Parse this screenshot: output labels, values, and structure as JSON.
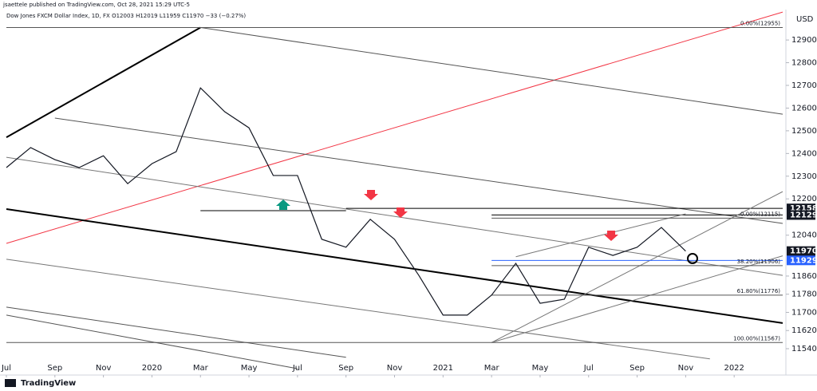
{
  "chart_data": {
    "type": "line",
    "publisher": "jsaettele published on TradingView.com, Oct 28, 2021 15:29 UTC-5",
    "title": "Dow Jones FXCM Dollar Index, 1D, FX  O12003  H12019  L11959  C11970  −33 (−0.27%)",
    "currency": "USD",
    "footer": "TradingView",
    "xlim": [
      "2019-07",
      "2022-03"
    ],
    "xticks": [
      {
        "value": "2019-07",
        "label": "Jul"
      },
      {
        "value": "2019-09",
        "label": "Sep"
      },
      {
        "value": "2019-11",
        "label": "Nov"
      },
      {
        "value": "2020-01",
        "label": "2020"
      },
      {
        "value": "2020-03",
        "label": "Mar"
      },
      {
        "value": "2020-05",
        "label": "May"
      },
      {
        "value": "2020-07",
        "label": "Jul"
      },
      {
        "value": "2020-09",
        "label": "Sep"
      },
      {
        "value": "2020-11",
        "label": "Nov"
      },
      {
        "value": "2021-01",
        "label": "2021"
      },
      {
        "value": "2021-03",
        "label": "Mar"
      },
      {
        "value": "2021-05",
        "label": "May"
      },
      {
        "value": "2021-07",
        "label": "Jul"
      },
      {
        "value": "2021-09",
        "label": "Sep"
      },
      {
        "value": "2021-11",
        "label": "Nov"
      },
      {
        "value": "2022-01",
        "label": "2022"
      }
    ],
    "ylim": [
      11452,
      13034
    ],
    "yticks": [
      12900,
      12800,
      12700,
      12600,
      12500,
      12400,
      12300,
      12200,
      12040,
      11860,
      11780,
      11700,
      11620,
      11540
    ],
    "x": [
      "2019-07",
      "2019-08",
      "2019-09",
      "2019-10",
      "2019-11",
      "2019-12",
      "2020-01",
      "2020-02",
      "2020-03",
      "2020-04",
      "2020-05",
      "2020-06",
      "2020-07",
      "2020-08",
      "2020-09",
      "2020-10",
      "2020-11",
      "2020-12",
      "2021-01",
      "2021-02",
      "2021-03",
      "2021-04",
      "2021-05",
      "2021-06",
      "2021-07",
      "2021-08",
      "2021-09",
      "2021-10",
      "2021-11"
    ],
    "series": [
      {
        "name": "Dow Jones FXCM Dollar Index",
        "color": "#131722",
        "values": [
          12338,
          12426,
          12373,
          12338,
          12390,
          12267,
          12355,
          12408,
          12689,
          12584,
          12513,
          12303,
          12303,
          12022,
          11987,
          12110,
          12022,
          11863,
          11688,
          11688,
          11776,
          11916,
          11740,
          11758,
          11987,
          11951,
          11987,
          12074,
          11970
        ]
      }
    ],
    "lines": [
      {
        "x": [
          "2019-07",
          "2020-03"
        ],
        "y": [
          12471,
          12955
        ],
        "color": "#000000",
        "style": "thick"
      },
      {
        "x": [
          "2019-07",
          "2022-03"
        ],
        "y": [
          12004,
          13023
        ],
        "color": "#f23645",
        "style": "thin"
      },
      {
        "x": [
          "2020-03",
          "2022-03"
        ],
        "y": [
          12955,
          12573
        ],
        "color": "#555555",
        "style": "thin"
      },
      {
        "x": [
          "2019-09",
          "2022-03"
        ],
        "y": [
          12556,
          12092
        ],
        "color": "#555555",
        "style": "thin"
      },
      {
        "x": [
          "2019-07",
          "2022-03"
        ],
        "y": [
          12383,
          11863
        ],
        "color": "#777777",
        "style": "thin"
      },
      {
        "x": [
          "2019-07",
          "2022-03"
        ],
        "y": [
          12155,
          11653
        ],
        "color": "#000000",
        "style": "thick"
      },
      {
        "x": [
          "2019-07",
          "2021-12"
        ],
        "y": [
          11934,
          11495
        ],
        "color": "#777777",
        "style": "thin"
      },
      {
        "x": [
          "2019-07",
          "2020-09"
        ],
        "y": [
          11723,
          11502
        ],
        "color": "#555555",
        "style": "thin"
      },
      {
        "x": [
          "2019-07",
          "2020-07"
        ],
        "y": [
          11688,
          11452
        ],
        "color": "#555555",
        "style": "thin"
      },
      {
        "x": [
          "2020-03",
          "2020-09"
        ],
        "y": [
          12148,
          12148
        ],
        "color": "#000000",
        "style": "thin"
      },
      {
        "x": [
          "2020-09",
          "2022-03"
        ],
        "y": [
          12158,
          12158
        ],
        "color": "#000000",
        "style": "thin"
      },
      {
        "x": [
          "2021-03",
          "2022-03"
        ],
        "y": [
          12129,
          12129
        ],
        "color": "#000000",
        "style": "thin"
      },
      {
        "x": [
          "2021-03",
          "2022-03"
        ],
        "y": [
          11567,
          12232
        ],
        "color": "#777777",
        "style": "thin"
      },
      {
        "x": [
          "2021-03",
          "2022-03"
        ],
        "y": [
          11567,
          11949
        ],
        "color": "#777777",
        "style": "thin"
      },
      {
        "x": [
          "2021-04",
          "2021-11"
        ],
        "y": [
          11945,
          12134
        ],
        "color": "#777777",
        "style": "thin"
      },
      {
        "x": [
          "2021-03",
          "2022-03"
        ],
        "y": [
          11929,
          11929
        ],
        "color": "#2962ff",
        "style": "thin"
      },
      {
        "x": [
          "2019-07",
          "2022-03"
        ],
        "y": [
          12955,
          12955
        ],
        "color": "#555555",
        "style": "thin",
        "label": "0.00%(12955)"
      },
      {
        "x": [
          "2021-03",
          "2022-03"
        ],
        "y": [
          12115,
          12115
        ],
        "color": "#555555",
        "style": "thin",
        "label": "0.00%(12115)"
      },
      {
        "x": [
          "2021-03",
          "2022-03"
        ],
        "y": [
          11906,
          11906
        ],
        "color": "#555555",
        "style": "thin",
        "label": "38.20%(11906)"
      },
      {
        "x": [
          "2021-03",
          "2022-03"
        ],
        "y": [
          11776,
          11776
        ],
        "color": "#555555",
        "style": "thin",
        "label": "61.80%(11776)"
      },
      {
        "x": [
          "2019-07",
          "2022-03"
        ],
        "y": [
          11567,
          11567
        ],
        "color": "#555555",
        "style": "thin",
        "label": "100.00%(11567)"
      }
    ],
    "price_tags": [
      {
        "value": 12158,
        "color": "#131722"
      },
      {
        "value": 12129,
        "color": "#131722"
      },
      {
        "value": 11970,
        "color": "#131722"
      },
      {
        "value": 11929,
        "color": "#2962ff"
      }
    ]
  }
}
